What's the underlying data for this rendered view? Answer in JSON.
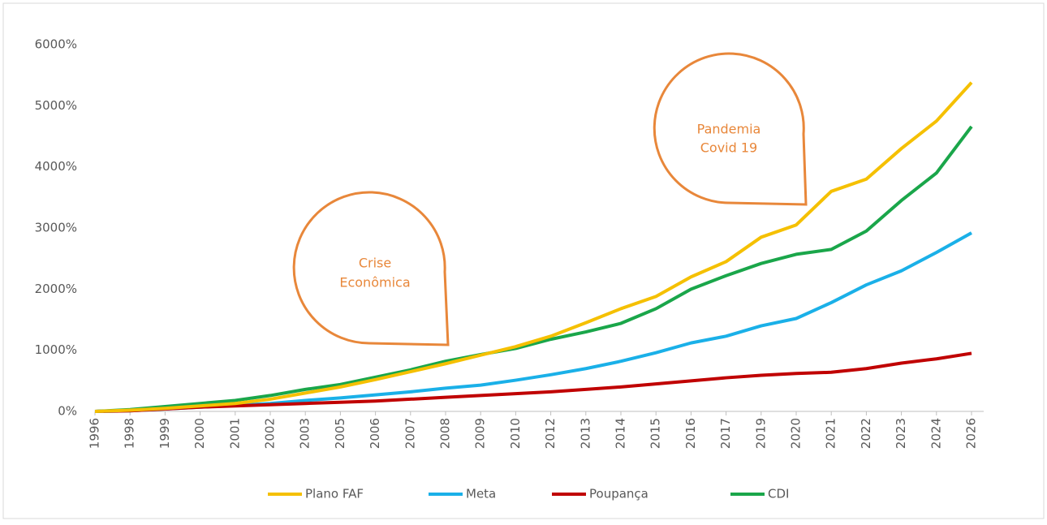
{
  "chart_data": {
    "type": "line",
    "categories": [
      "1996",
      "1998",
      "1999",
      "2000",
      "2001",
      "2002",
      "2003",
      "2005",
      "2006",
      "2007",
      "2008",
      "2009",
      "2010",
      "2012",
      "2013",
      "2014",
      "2015",
      "2016",
      "2017",
      "2019",
      "2020",
      "2021",
      "2022",
      "2023",
      "2024",
      "2026"
    ],
    "series": [
      {
        "name": "Plano FAF",
        "color": "#f5c000",
        "values": [
          0,
          20,
          50,
          90,
          130,
          200,
          300,
          400,
          520,
          650,
          780,
          920,
          1060,
          1230,
          1450,
          1680,
          1880,
          2200,
          2450,
          2850,
          3050,
          3600,
          3800,
          4300,
          4750,
          5380
        ]
      },
      {
        "name": "Meta",
        "color": "#1ab0e8",
        "values": [
          0,
          10,
          40,
          70,
          100,
          130,
          180,
          220,
          270,
          320,
          380,
          430,
          510,
          600,
          700,
          820,
          960,
          1120,
          1230,
          1400,
          1520,
          1780,
          2070,
          2300,
          2600,
          2920
        ]
      },
      {
        "name": "Poupança",
        "color": "#c00000",
        "values": [
          0,
          10,
          40,
          70,
          90,
          110,
          130,
          150,
          170,
          200,
          230,
          260,
          290,
          320,
          360,
          400,
          450,
          500,
          550,
          590,
          620,
          640,
          700,
          790,
          860,
          950
        ]
      },
      {
        "name": "CDI",
        "color": "#1aa64a",
        "values": [
          0,
          30,
          80,
          130,
          180,
          260,
          360,
          440,
          560,
          680,
          820,
          930,
          1030,
          1180,
          1300,
          1440,
          1680,
          2000,
          2220,
          2420,
          2570,
          2650,
          2950,
          3450,
          3900,
          4660
        ]
      }
    ],
    "ylim": [
      0,
      6000
    ],
    "yticks": [
      {
        "value": 0,
        "label": "0%"
      },
      {
        "value": 1000,
        "label": "1000%"
      },
      {
        "value": 2000,
        "label": "2000%"
      },
      {
        "value": 3000,
        "label": "3000%"
      },
      {
        "value": 4000,
        "label": "4000%"
      },
      {
        "value": 5000,
        "label": "5000%"
      },
      {
        "value": 6000,
        "label": "6000%"
      }
    ],
    "grid": false,
    "legend": "bottom",
    "annotations": [
      {
        "lines": [
          "Crise",
          "Econômica"
        ]
      },
      {
        "lines": [
          "Pandemia",
          "Covid 19"
        ]
      }
    ]
  }
}
